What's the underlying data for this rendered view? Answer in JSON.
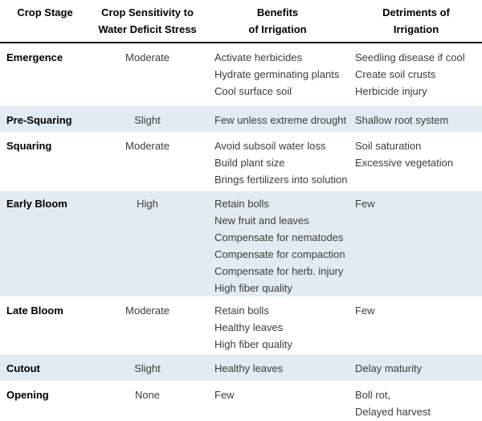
{
  "colors": {
    "row_band": "#e1ebf1",
    "header_rule": "#111111",
    "body_text": "#3d3d3d",
    "heading_text": "#000000"
  },
  "table": {
    "headers": [
      [
        "Crop Stage"
      ],
      [
        "Crop Sensitivity to",
        "Water Deficit Stress"
      ],
      [
        "Benefits",
        "of Irrigation"
      ],
      [
        "Detriments of",
        "Irrigation"
      ]
    ],
    "rows": [
      {
        "stage": "Emergence",
        "sensitivity": "Moderate",
        "benefits": [
          "Activate herbicides",
          "Hydrate germinating plants",
          "Cool surface soil"
        ],
        "detriments": [
          "Seedling disease if cool",
          "Create soil crusts",
          "Herbicide injury"
        ]
      },
      {
        "stage": "Pre-Squaring",
        "sensitivity": "Slight",
        "benefits": [
          "Few unless extreme drought"
        ],
        "detriments": [
          "Shallow root system"
        ]
      },
      {
        "stage": "Squaring",
        "sensitivity": "Moderate",
        "benefits": [
          "Avoid subsoil water loss",
          "Build plant size",
          "Brings fertilizers into solution"
        ],
        "detriments": [
          "Soil saturation",
          "Excessive vegetation"
        ]
      },
      {
        "stage": "Early Bloom",
        "sensitivity": "High",
        "benefits": [
          "Retain bolls",
          "New fruit and leaves",
          "Compensate for nematodes",
          "Compensate for compaction",
          "Compensate for herb. injury",
          "High fiber quality"
        ],
        "detriments": [
          "Few"
        ]
      },
      {
        "stage": "Late Bloom",
        "sensitivity": "Moderate",
        "benefits": [
          "Retain bolls",
          "Healthy leaves",
          "High fiber quality"
        ],
        "detriments": [
          "Few"
        ]
      },
      {
        "stage": "Cutout",
        "sensitivity": "Slight",
        "benefits": [
          "Healthy leaves"
        ],
        "detriments": [
          "Delay maturity"
        ]
      },
      {
        "stage": "Opening",
        "sensitivity": "None",
        "benefits": [
          "Few"
        ],
        "detriments": [
          "Boll rot,",
          "Delayed harvest"
        ]
      }
    ]
  }
}
